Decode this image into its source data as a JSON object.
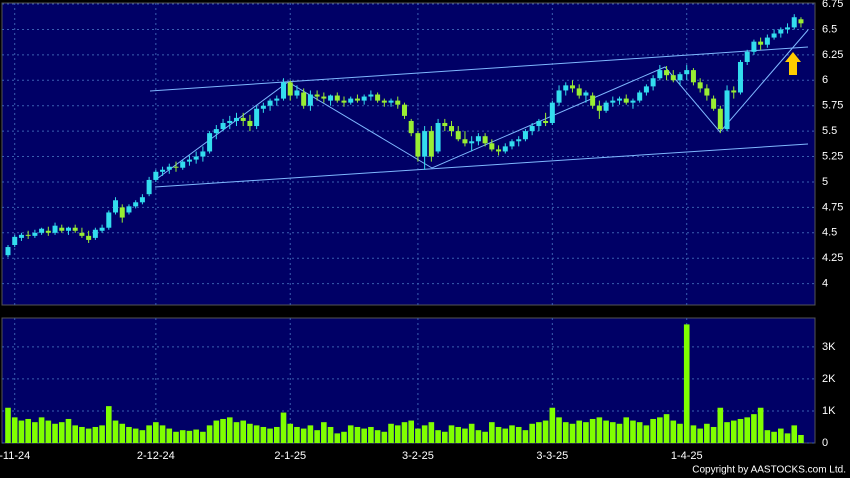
{
  "chart_data": {
    "type": "candlestick",
    "categories": [
      null,
      "-11-24",
      null,
      null,
      null,
      null,
      null,
      null,
      null,
      null,
      null,
      null,
      null,
      null,
      null,
      null,
      null,
      null,
      null,
      null,
      null,
      null,
      "2-12-24",
      null,
      null,
      null,
      null,
      null,
      null,
      null,
      null,
      null,
      null,
      null,
      null,
      null,
      null,
      null,
      null,
      null,
      null,
      null,
      "2-1-25",
      null,
      null,
      null,
      null,
      null,
      null,
      null,
      null,
      null,
      null,
      null,
      null,
      null,
      null,
      null,
      null,
      null,
      null,
      "3-2-25",
      null,
      null,
      null,
      null,
      null,
      null,
      null,
      null,
      null,
      null,
      null,
      null,
      null,
      null,
      null,
      null,
      null,
      null,
      null,
      "3-3-25",
      null,
      null,
      null,
      null,
      null,
      null,
      null,
      null,
      null,
      null,
      null,
      null,
      null,
      null,
      null,
      null,
      null,
      null,
      null,
      "1-4-25",
      null,
      null,
      null,
      null,
      null,
      null,
      null,
      null,
      null,
      null,
      null,
      null,
      null,
      null,
      null,
      null,
      null
    ],
    "ohlc": [
      [
        4.28,
        4.38,
        4.26,
        4.36
      ],
      [
        4.38,
        4.48,
        4.36,
        4.46
      ],
      [
        4.45,
        4.5,
        4.42,
        4.48
      ],
      [
        4.48,
        4.52,
        4.44,
        4.47
      ],
      [
        4.47,
        4.53,
        4.45,
        4.5
      ],
      [
        4.5,
        4.55,
        4.48,
        4.54
      ],
      [
        4.52,
        4.56,
        4.47,
        4.5
      ],
      [
        4.5,
        4.6,
        4.48,
        4.57
      ],
      [
        4.55,
        4.58,
        4.5,
        4.52
      ],
      [
        4.52,
        4.56,
        4.48,
        4.55
      ],
      [
        4.55,
        4.58,
        4.5,
        4.52
      ],
      [
        4.5,
        4.55,
        4.45,
        4.47
      ],
      [
        4.47,
        4.52,
        4.4,
        4.43
      ],
      [
        4.45,
        4.55,
        4.43,
        4.53
      ],
      [
        4.52,
        4.58,
        4.5,
        4.55
      ],
      [
        4.55,
        4.72,
        4.53,
        4.7
      ],
      [
        4.7,
        4.85,
        4.68,
        4.82
      ],
      [
        4.75,
        4.78,
        4.6,
        4.65
      ],
      [
        4.7,
        4.78,
        4.68,
        4.76
      ],
      [
        4.76,
        4.82,
        4.74,
        4.8
      ],
      [
        4.8,
        4.88,
        4.78,
        4.85
      ],
      [
        4.88,
        5.05,
        4.86,
        5.02
      ],
      [
        5.02,
        5.12,
        5.0,
        5.1
      ],
      [
        5.1,
        5.15,
        5.06,
        5.12
      ],
      [
        5.12,
        5.18,
        5.08,
        5.15
      ],
      [
        5.15,
        5.2,
        5.1,
        5.14
      ],
      [
        5.14,
        5.22,
        5.12,
        5.2
      ],
      [
        5.2,
        5.26,
        5.16,
        5.22
      ],
      [
        5.22,
        5.3,
        5.18,
        5.25
      ],
      [
        5.25,
        5.35,
        5.2,
        5.3
      ],
      [
        5.3,
        5.5,
        5.28,
        5.48
      ],
      [
        5.48,
        5.56,
        5.42,
        5.52
      ],
      [
        5.52,
        5.62,
        5.5,
        5.58
      ],
      [
        5.58,
        5.65,
        5.52,
        5.6
      ],
      [
        5.6,
        5.68,
        5.55,
        5.63
      ],
      [
        5.63,
        5.68,
        5.55,
        5.6
      ],
      [
        5.6,
        5.66,
        5.5,
        5.55
      ],
      [
        5.55,
        5.75,
        5.52,
        5.72
      ],
      [
        5.72,
        5.78,
        5.68,
        5.75
      ],
      [
        5.75,
        5.82,
        5.7,
        5.8
      ],
      [
        5.8,
        5.85,
        5.75,
        5.82
      ],
      [
        5.82,
        6.02,
        5.8,
        5.98
      ],
      [
        5.98,
        6.0,
        5.8,
        5.85
      ],
      [
        5.85,
        5.95,
        5.82,
        5.9
      ],
      [
        5.88,
        5.92,
        5.72,
        5.75
      ],
      [
        5.75,
        5.9,
        5.7,
        5.86
      ],
      [
        5.86,
        5.9,
        5.8,
        5.84
      ],
      [
        5.84,
        5.88,
        5.78,
        5.82
      ],
      [
        5.8,
        5.86,
        5.75,
        5.85
      ],
      [
        5.85,
        5.88,
        5.78,
        5.8
      ],
      [
        5.8,
        5.84,
        5.74,
        5.78
      ],
      [
        5.78,
        5.84,
        5.76,
        5.82
      ],
      [
        5.82,
        5.86,
        5.78,
        5.8
      ],
      [
        5.8,
        5.86,
        5.76,
        5.84
      ],
      [
        5.84,
        5.9,
        5.8,
        5.86
      ],
      [
        5.86,
        5.88,
        5.78,
        5.8
      ],
      [
        5.8,
        5.82,
        5.74,
        5.78
      ],
      [
        5.78,
        5.82,
        5.74,
        5.8
      ],
      [
        5.8,
        5.84,
        5.72,
        5.76
      ],
      [
        5.76,
        5.78,
        5.62,
        5.65
      ],
      [
        5.6,
        5.62,
        5.45,
        5.48
      ],
      [
        5.48,
        5.5,
        5.2,
        5.25
      ],
      [
        5.25,
        5.55,
        5.12,
        5.5
      ],
      [
        5.5,
        5.55,
        5.2,
        5.25
      ],
      [
        5.3,
        5.62,
        5.28,
        5.58
      ],
      [
        5.58,
        5.62,
        5.5,
        5.55
      ],
      [
        5.55,
        5.6,
        5.45,
        5.5
      ],
      [
        5.5,
        5.55,
        5.4,
        5.42
      ],
      [
        5.42,
        5.5,
        5.35,
        5.38
      ],
      [
        5.38,
        5.45,
        5.3,
        5.4
      ],
      [
        5.4,
        5.48,
        5.36,
        5.45
      ],
      [
        5.45,
        5.48,
        5.35,
        5.38
      ],
      [
        5.38,
        5.42,
        5.3,
        5.32
      ],
      [
        5.32,
        5.36,
        5.26,
        5.3
      ],
      [
        5.3,
        5.38,
        5.28,
        5.35
      ],
      [
        5.35,
        5.42,
        5.32,
        5.4
      ],
      [
        5.4,
        5.45,
        5.35,
        5.42
      ],
      [
        5.42,
        5.52,
        5.4,
        5.5
      ],
      [
        5.5,
        5.58,
        5.46,
        5.55
      ],
      [
        5.55,
        5.62,
        5.5,
        5.6
      ],
      [
        5.6,
        5.68,
        5.55,
        5.58
      ],
      [
        5.58,
        5.8,
        5.56,
        5.78
      ],
      [
        5.78,
        5.95,
        5.75,
        5.9
      ],
      [
        5.9,
        5.98,
        5.85,
        5.95
      ],
      [
        5.95,
        6.0,
        5.88,
        5.92
      ],
      [
        5.92,
        5.96,
        5.82,
        5.85
      ],
      [
        5.85,
        5.9,
        5.78,
        5.88
      ],
      [
        5.85,
        5.88,
        5.72,
        5.75
      ],
      [
        5.75,
        5.8,
        5.62,
        5.7
      ],
      [
        5.7,
        5.8,
        5.68,
        5.78
      ],
      [
        5.78,
        5.84,
        5.74,
        5.8
      ],
      [
        5.8,
        5.84,
        5.76,
        5.82
      ],
      [
        5.82,
        5.86,
        5.76,
        5.78
      ],
      [
        5.78,
        5.82,
        5.72,
        5.8
      ],
      [
        5.8,
        5.9,
        5.78,
        5.88
      ],
      [
        5.88,
        5.96,
        5.85,
        5.94
      ],
      [
        5.94,
        6.05,
        5.9,
        6.02
      ],
      [
        6.02,
        6.15,
        6.0,
        6.1
      ],
      [
        6.1,
        6.14,
        6.0,
        6.05
      ],
      [
        6.05,
        6.1,
        5.98,
        6.0
      ],
      [
        6.0,
        6.08,
        5.95,
        6.06
      ],
      [
        6.06,
        6.15,
        6.0,
        6.1
      ],
      [
        6.1,
        6.12,
        5.95,
        5.98
      ],
      [
        5.98,
        6.02,
        5.88,
        5.92
      ],
      [
        5.92,
        5.96,
        5.8,
        5.85
      ],
      [
        5.82,
        5.85,
        5.7,
        5.72
      ],
      [
        5.72,
        5.75,
        5.48,
        5.52
      ],
      [
        5.52,
        5.95,
        5.5,
        5.9
      ],
      [
        5.9,
        5.94,
        5.82,
        5.88
      ],
      [
        5.88,
        6.2,
        5.86,
        6.18
      ],
      [
        6.18,
        6.3,
        6.15,
        6.28
      ],
      [
        6.28,
        6.4,
        6.25,
        6.38
      ],
      [
        6.38,
        6.42,
        6.3,
        6.35
      ],
      [
        6.35,
        6.45,
        6.32,
        6.42
      ],
      [
        6.42,
        6.5,
        6.4,
        6.46
      ],
      [
        6.46,
        6.52,
        6.42,
        6.5
      ],
      [
        6.5,
        6.56,
        6.46,
        6.52
      ],
      [
        6.52,
        6.65,
        6.5,
        6.62
      ],
      [
        6.6,
        6.62,
        6.52,
        6.56
      ]
    ],
    "up_color": "#33ddee",
    "down_color": "#99ee33",
    "ylim": [
      3.79,
      6.76
    ],
    "yticks": [
      4,
      4.25,
      4.5,
      4.75,
      5,
      5.25,
      5.5,
      5.75,
      6,
      6.25,
      6.5,
      6.75
    ],
    "grid": true,
    "volume": {
      "values": [
        1100,
        800,
        700,
        750,
        650,
        800,
        700,
        600,
        650,
        750,
        550,
        500,
        450,
        500,
        550,
        1150,
        700,
        600,
        500,
        450,
        400,
        550,
        650,
        550,
        450,
        350,
        400,
        380,
        420,
        350,
        550,
        700,
        750,
        800,
        650,
        700,
        600,
        550,
        500,
        450,
        500,
        950,
        600,
        500,
        450,
        550,
        400,
        650,
        500,
        300,
        350,
        550,
        500,
        450,
        500,
        400,
        350,
        600,
        550,
        650,
        700,
        450,
        550,
        650,
        400,
        350,
        550,
        500,
        450,
        600,
        400,
        350,
        650,
        500,
        450,
        550,
        500,
        400,
        600,
        650,
        700,
        1100,
        800,
        650,
        600,
        700,
        650,
        750,
        800,
        700,
        650,
        600,
        800,
        700,
        650,
        550,
        750,
        800,
        900,
        700,
        600,
        3700,
        550,
        450,
        600,
        500,
        1100,
        650,
        700,
        750,
        800,
        900,
        1100,
        400,
        350,
        450,
        300,
        550,
        250
      ],
      "color": "#80ff00",
      "ylim": [
        0,
        3900
      ],
      "yticks": [
        0,
        {
          "value": 1000,
          "label": "1K"
        },
        {
          "value": 2000,
          "label": "2K"
        },
        {
          "value": 3000,
          "label": "3K"
        }
      ]
    },
    "copyright": "Copyright by AASTOCKS.com Ltd."
  }
}
